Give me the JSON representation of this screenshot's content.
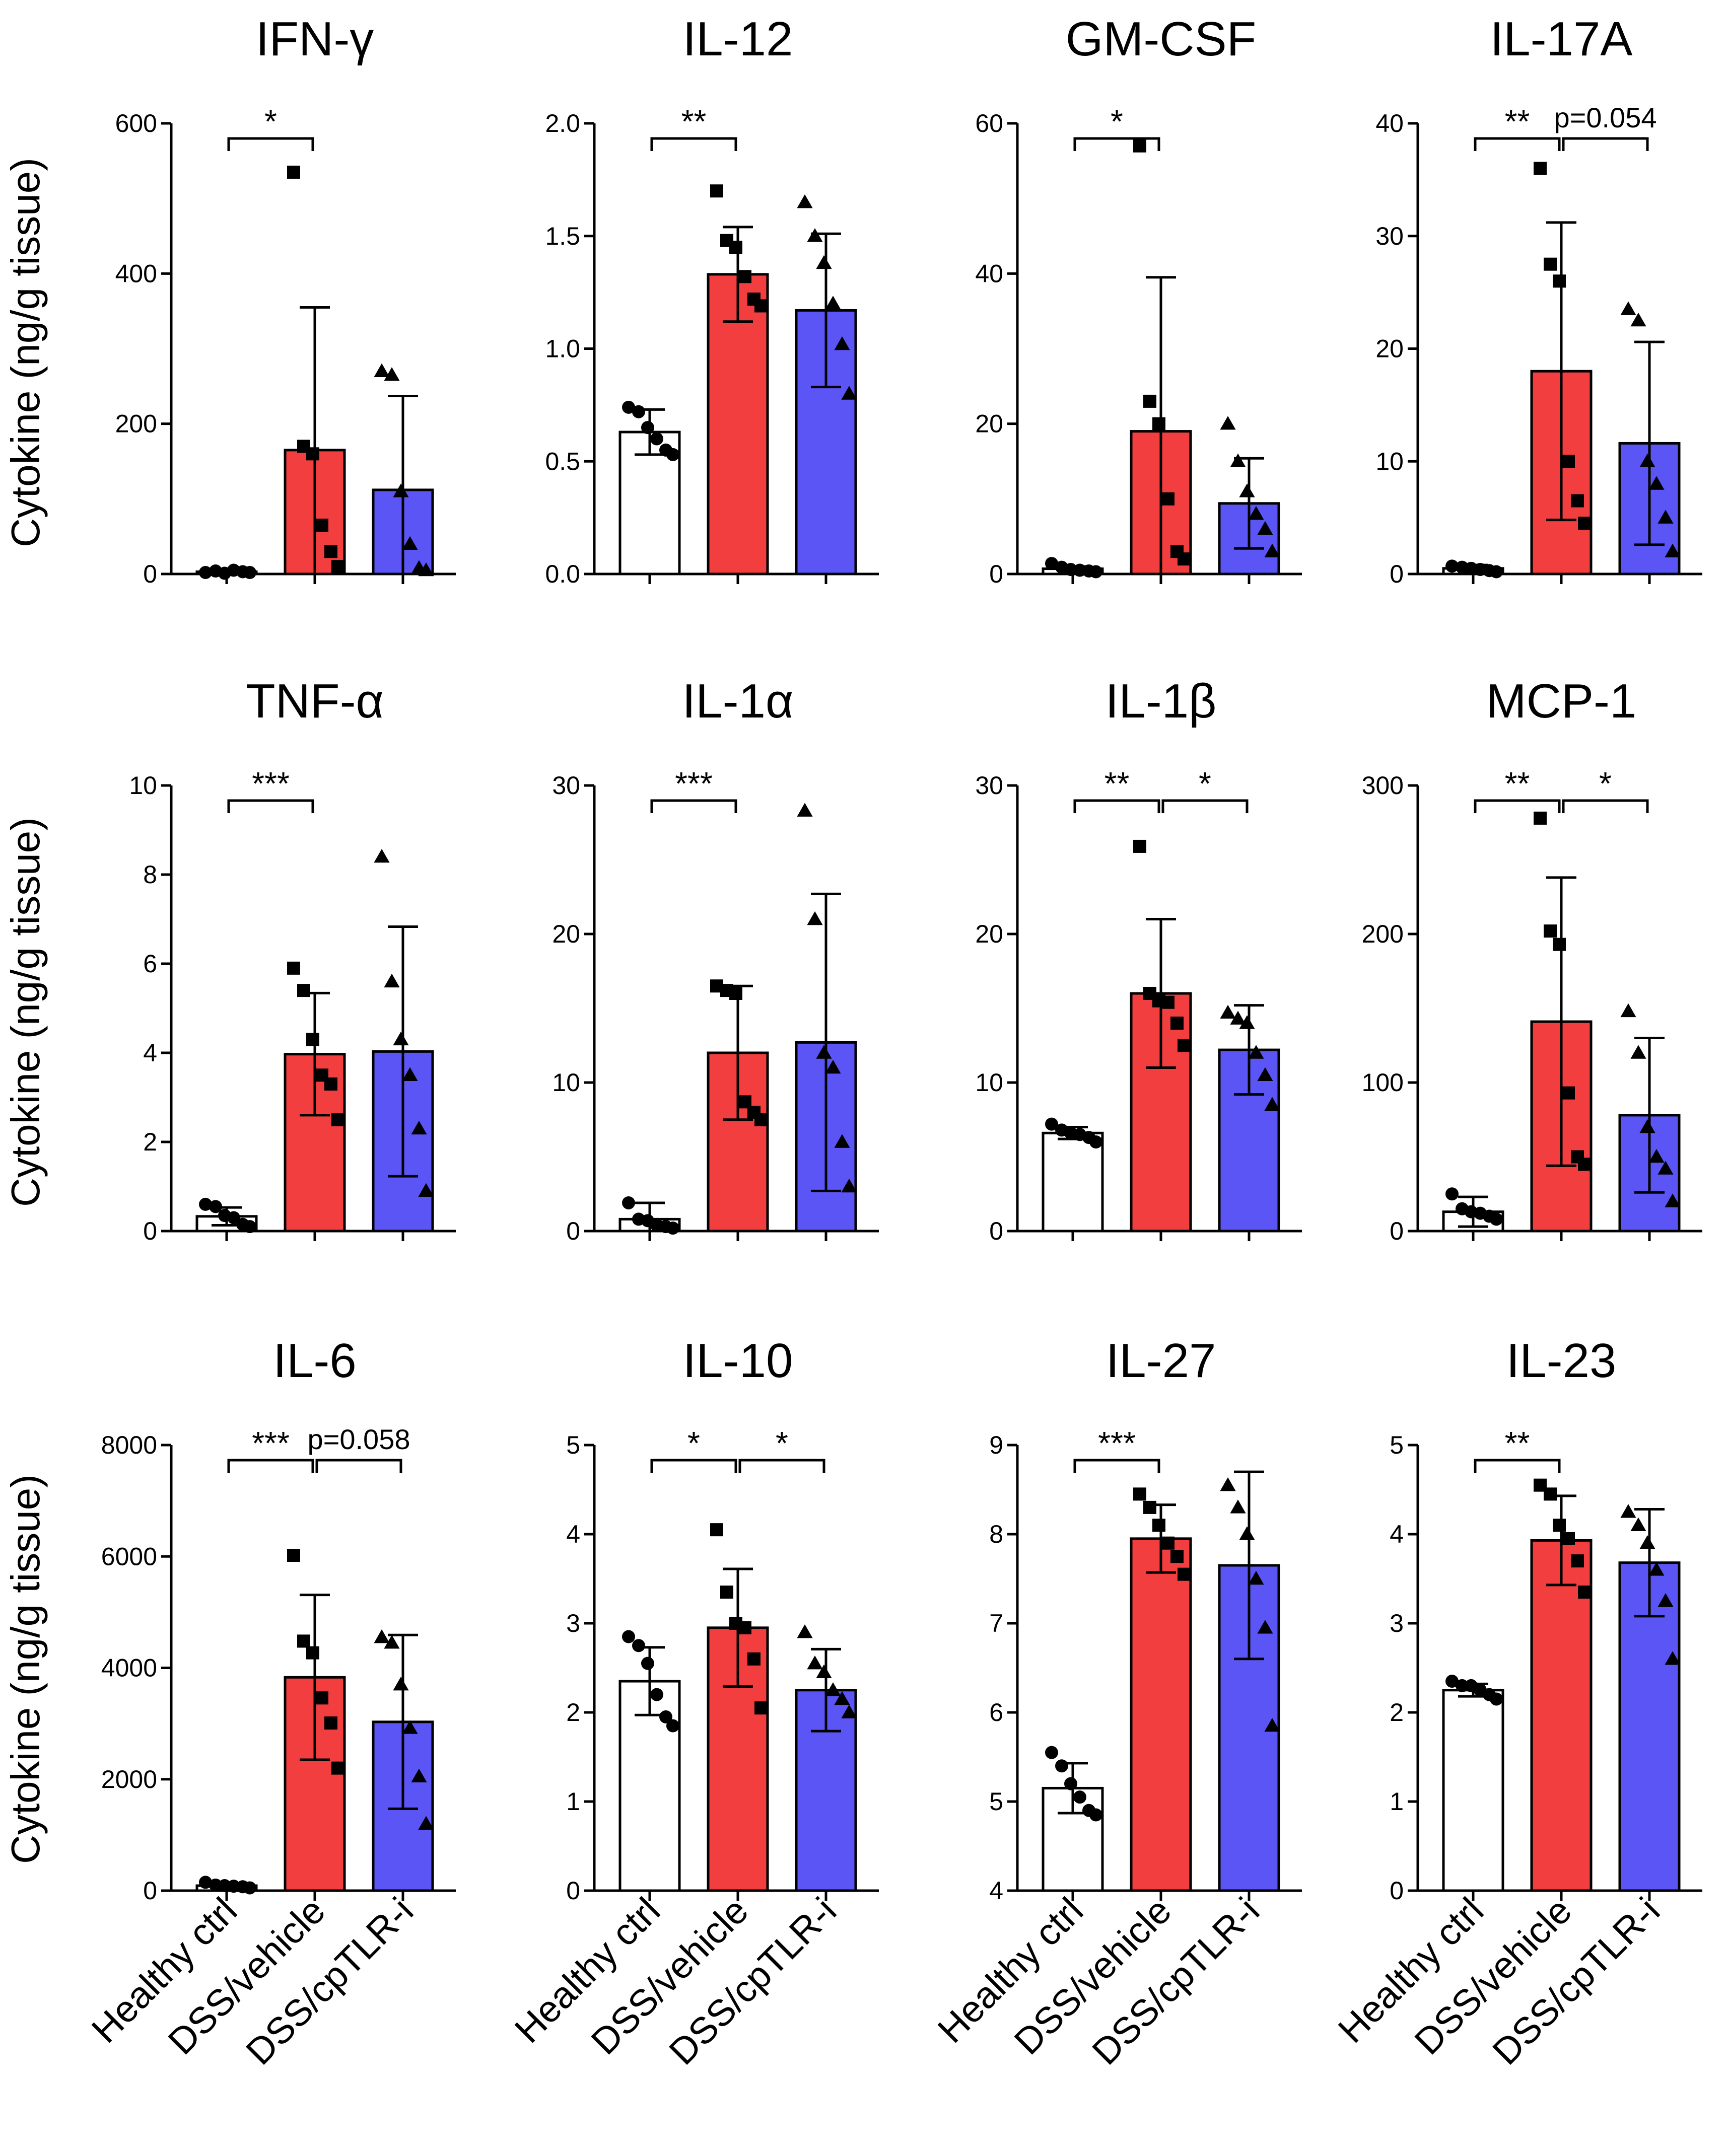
{
  "figure": {
    "ylabel": "Cytokine (ng/g tissue)",
    "groups": [
      "Healthy ctrl",
      "DSS/vehicle",
      "DSS/cpTLR-i"
    ],
    "bar_colors": [
      "#ffffff",
      "#f23e3e",
      "#5b55f5"
    ]
  },
  "chart_data": [
    {
      "type": "bar",
      "title": "IFN-γ",
      "ylim": [
        0,
        600
      ],
      "yticks": [
        0,
        200,
        400,
        600
      ],
      "means": [
        3,
        165,
        112
      ],
      "sd": [
        3,
        190,
        125
      ],
      "points": [
        [
          2,
          4,
          1,
          5,
          3,
          2
        ],
        [
          535,
          170,
          160,
          65,
          30,
          10
        ],
        [
          270,
          265,
          110,
          40,
          8,
          5
        ]
      ],
      "sig": [
        {
          "from": 0,
          "to": 1,
          "label": "*"
        }
      ]
    },
    {
      "type": "bar",
      "title": "IL-12",
      "ylim": [
        0,
        2.0
      ],
      "yticks": [
        0,
        0.5,
        1.0,
        1.5,
        2.0
      ],
      "ytick_labels": [
        "0.0",
        "0.5",
        "1.0",
        "1.5",
        "2.0"
      ],
      "means": [
        0.63,
        1.33,
        1.17
      ],
      "sd": [
        0.1,
        0.21,
        0.34
      ],
      "points": [
        [
          0.74,
          0.72,
          0.65,
          0.6,
          0.55,
          0.53
        ],
        [
          1.7,
          1.48,
          1.45,
          1.32,
          1.22,
          1.19
        ],
        [
          1.65,
          1.5,
          1.38,
          1.2,
          1.02,
          0.8
        ]
      ],
      "sig": [
        {
          "from": 0,
          "to": 1,
          "label": "**"
        }
      ]
    },
    {
      "type": "bar",
      "title": "GM-CSF",
      "ylim": [
        0,
        60
      ],
      "yticks": [
        0,
        20,
        40,
        60
      ],
      "means": [
        0.7,
        19,
        9.4
      ],
      "sd": [
        0.3,
        20.5,
        6
      ],
      "points": [
        [
          1.4,
          0.9,
          0.6,
          0.5,
          0.4,
          0.3
        ],
        [
          57,
          23,
          20,
          10,
          3,
          2
        ],
        [
          20,
          15,
          11,
          8,
          6,
          3
        ]
      ],
      "sig": [
        {
          "from": 0,
          "to": 1,
          "label": "*"
        }
      ]
    },
    {
      "type": "bar",
      "title": "IL-17A",
      "ylim": [
        0,
        40
      ],
      "yticks": [
        0,
        10,
        20,
        30,
        40
      ],
      "means": [
        0.5,
        18,
        11.6
      ],
      "sd": [
        0.3,
        13.2,
        9
      ],
      "points": [
        [
          0.7,
          0.6,
          0.5,
          0.4,
          0.3,
          0.2
        ],
        [
          36,
          27.5,
          26,
          10,
          6.5,
          4.5
        ],
        [
          23.5,
          22.5,
          10,
          8,
          5,
          2
        ]
      ],
      "sig": [
        {
          "from": 0,
          "to": 1,
          "label": "**"
        },
        {
          "from": 1,
          "to": 2,
          "label": "p=0.054"
        }
      ]
    },
    {
      "type": "bar",
      "title": "TNF-α",
      "ylim": [
        0,
        10
      ],
      "yticks": [
        0,
        2,
        4,
        6,
        8,
        10
      ],
      "means": [
        0.33,
        3.97,
        4.03
      ],
      "sd": [
        0.2,
        1.37,
        2.8
      ],
      "points": [
        [
          0.6,
          0.55,
          0.35,
          0.3,
          0.15,
          0.1
        ],
        [
          5.9,
          5.4,
          4.3,
          3.5,
          3.3,
          2.5
        ],
        [
          8.4,
          5.6,
          4.3,
          3.5,
          2.3,
          0.9
        ]
      ],
      "sig": [
        {
          "from": 0,
          "to": 1,
          "label": "***"
        }
      ]
    },
    {
      "type": "bar",
      "title": "IL-1α",
      "ylim": [
        0,
        30
      ],
      "yticks": [
        0,
        10,
        20,
        30
      ],
      "means": [
        0.8,
        12,
        12.7
      ],
      "sd": [
        1.1,
        4.5,
        10
      ],
      "points": [
        [
          1.9,
          0.8,
          0.7,
          0.4,
          0.3,
          0.2
        ],
        [
          16.5,
          16.2,
          16,
          8.7,
          8,
          7.5
        ],
        [
          28.3,
          21,
          12,
          11,
          6,
          3
        ]
      ],
      "sig": [
        {
          "from": 0,
          "to": 1,
          "label": "***"
        }
      ]
    },
    {
      "type": "bar",
      "title": "IL-1β",
      "ylim": [
        0,
        30
      ],
      "yticks": [
        0,
        10,
        20,
        30
      ],
      "means": [
        6.6,
        16,
        12.2
      ],
      "sd": [
        0.4,
        5,
        3
      ],
      "points": [
        [
          7.2,
          6.8,
          6.6,
          6.5,
          6.3,
          6
        ],
        [
          25.9,
          16,
          15.5,
          15.4,
          14,
          12.5
        ],
        [
          14.7,
          14.3,
          14,
          12,
          10.5,
          8.5
        ]
      ],
      "sig": [
        {
          "from": 1,
          "to": 2,
          "label": "*"
        },
        {
          "from": 0,
          "to": 1,
          "label": "**"
        }
      ]
    },
    {
      "type": "bar",
      "title": "MCP-1",
      "ylim": [
        0,
        300
      ],
      "yticks": [
        0,
        100,
        200,
        300
      ],
      "means": [
        13,
        141,
        78
      ],
      "sd": [
        10,
        97,
        52
      ],
      "points": [
        [
          25,
          15,
          13,
          12,
          10,
          8
        ],
        [
          278,
          202,
          193,
          93,
          50,
          45
        ],
        [
          148,
          120,
          70,
          50,
          42,
          20
        ]
      ],
      "sig": [
        {
          "from": 0,
          "to": 1,
          "label": "**"
        },
        {
          "from": 1,
          "to": 2,
          "label": "*"
        }
      ]
    },
    {
      "type": "bar",
      "title": "IL-6",
      "ylim": [
        0,
        8000
      ],
      "yticks": [
        0,
        2000,
        4000,
        6000,
        8000
      ],
      "means": [
        90,
        3830,
        3030
      ],
      "sd": [
        40,
        1480,
        1560
      ],
      "points": [
        [
          150,
          100,
          90,
          80,
          70,
          50
        ],
        [
          6020,
          4480,
          4270,
          3460,
          3010,
          2200
        ],
        [
          4550,
          4450,
          3700,
          2920,
          2050,
          1200
        ]
      ],
      "sig": [
        {
          "from": 0,
          "to": 1,
          "label": "***"
        },
        {
          "from": 1,
          "to": 2,
          "label": "p=0.058"
        }
      ]
    },
    {
      "type": "bar",
      "title": "IL-10",
      "ylim": [
        0,
        5
      ],
      "yticks": [
        0,
        1,
        2,
        3,
        4,
        5
      ],
      "means": [
        2.35,
        2.95,
        2.25
      ],
      "sd": [
        0.38,
        0.66,
        0.46
      ],
      "points": [
        [
          2.85,
          2.75,
          2.55,
          2.2,
          1.95,
          1.85
        ],
        [
          4.05,
          3.35,
          3.0,
          2.95,
          2.6,
          2.05
        ],
        [
          2.9,
          2.55,
          2.45,
          2.25,
          2.15,
          2.0
        ]
      ],
      "sig": [
        {
          "from": 0,
          "to": 1,
          "label": "*"
        },
        {
          "from": 1,
          "to": 2,
          "label": "*"
        }
      ]
    },
    {
      "type": "bar",
      "title": "IL-27",
      "ylim": [
        4,
        9
      ],
      "yticks": [
        4,
        5,
        6,
        7,
        8,
        9
      ],
      "means": [
        5.15,
        7.95,
        7.65
      ],
      "sd": [
        0.28,
        0.38,
        1.05
      ],
      "points": [
        [
          5.55,
          5.4,
          5.2,
          5.05,
          4.9,
          4.85
        ],
        [
          8.45,
          8.3,
          8.1,
          7.9,
          7.75,
          7.55
        ],
        [
          8.55,
          8.3,
          8.0,
          7.5,
          6.95,
          5.85
        ]
      ],
      "sig": [
        {
          "from": 0,
          "to": 1,
          "label": "***"
        }
      ]
    },
    {
      "type": "bar",
      "title": "IL-23",
      "ylim": [
        0,
        5
      ],
      "yticks": [
        0,
        1,
        2,
        3,
        4,
        5
      ],
      "means": [
        2.25,
        3.93,
        3.68
      ],
      "sd": [
        0.07,
        0.5,
        0.6
      ],
      "points": [
        [
          2.35,
          2.3,
          2.3,
          2.25,
          2.2,
          2.15
        ],
        [
          4.55,
          4.45,
          4.1,
          3.95,
          3.7,
          3.35
        ],
        [
          4.25,
          4.1,
          3.9,
          3.6,
          3.25,
          2.6
        ]
      ],
      "sig": [
        {
          "from": 0,
          "to": 1,
          "label": "**"
        }
      ]
    }
  ]
}
